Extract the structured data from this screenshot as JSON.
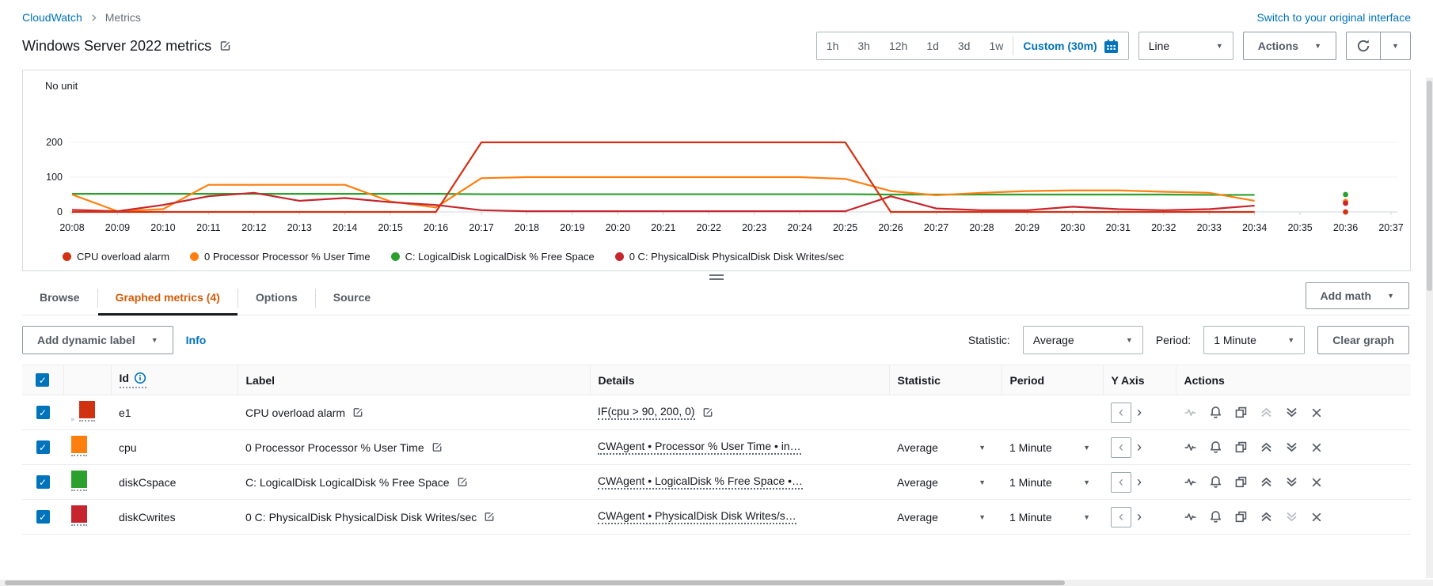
{
  "breadcrumb": {
    "home": "CloudWatch",
    "current": "Metrics"
  },
  "header": {
    "switch_link": "Switch to your original interface",
    "title": "Windows Server 2022 metrics",
    "time_ranges": [
      "1h",
      "3h",
      "12h",
      "1d",
      "3d",
      "1w"
    ],
    "custom_range": "Custom (30m)",
    "chart_type_select": "Line",
    "actions_button": "Actions"
  },
  "chart_data": {
    "type": "line",
    "unit_label": "No unit",
    "yticks": [
      0,
      100,
      200
    ],
    "ylim": [
      0,
      230
    ],
    "grid": true,
    "legend_position": "bottom",
    "x": [
      "20:08",
      "20:09",
      "20:10",
      "20:11",
      "20:12",
      "20:13",
      "20:14",
      "20:15",
      "20:16",
      "20:17",
      "20:18",
      "20:19",
      "20:20",
      "20:21",
      "20:22",
      "20:23",
      "20:24",
      "20:25",
      "20:26",
      "20:27",
      "20:28",
      "20:29",
      "20:30",
      "20:31",
      "20:32",
      "20:33",
      "20:34",
      "20:35",
      "20:36",
      "20:37"
    ],
    "series": [
      {
        "name": "C: LogicalDisk LogicalDisk % Free Space",
        "color": "#2ca02c",
        "values": [
          52,
          52,
          52,
          52,
          52,
          52,
          52,
          52,
          52,
          51,
          51,
          51,
          51,
          51,
          51,
          51,
          51,
          51,
          50,
          50,
          50,
          50,
          50,
          50,
          50,
          49,
          49,
          null,
          50,
          null
        ]
      },
      {
        "name": "0 Processor Processor % User Time",
        "color": "#ff7f0e",
        "values": [
          50,
          2,
          8,
          78,
          78,
          78,
          78,
          30,
          13,
          97,
          100,
          100,
          100,
          100,
          100,
          100,
          100,
          95,
          60,
          48,
          55,
          60,
          62,
          62,
          58,
          55,
          32,
          null,
          30,
          null
        ]
      },
      {
        "name": "0 C: PhysicalDisk PhysicalDisk Disk Writes/sec",
        "color": "#c7252d",
        "values": [
          6,
          2,
          20,
          45,
          55,
          32,
          40,
          28,
          20,
          5,
          2,
          2,
          2,
          2,
          2,
          2,
          2,
          2,
          45,
          10,
          5,
          5,
          15,
          8,
          5,
          8,
          18,
          null,
          25,
          null
        ]
      },
      {
        "name": "CPU overload alarm",
        "color": "#d13212",
        "values": [
          0,
          0,
          0,
          0,
          0,
          0,
          0,
          0,
          0,
          200,
          200,
          200,
          200,
          200,
          200,
          200,
          200,
          200,
          0,
          0,
          0,
          0,
          0,
          0,
          0,
          0,
          0,
          null,
          0,
          null
        ]
      }
    ],
    "legend_order": [
      "CPU overload alarm",
      "0 Processor Processor % User Time",
      "C: LogicalDisk LogicalDisk % Free Space",
      "0 C: PhysicalDisk PhysicalDisk Disk Writes/sec"
    ],
    "legend_colors": [
      "#d13212",
      "#ff7f0e",
      "#2ca02c",
      "#c7252d"
    ]
  },
  "tabs": {
    "items": [
      "Browse",
      "Graphed metrics (4)",
      "Options",
      "Source"
    ],
    "active_index": 1,
    "add_math_button": "Add math"
  },
  "toolbar": {
    "add_dynamic_label_button": "Add dynamic label",
    "info_link": "Info",
    "statistic_label": "Statistic:",
    "statistic_value": "Average",
    "period_label": "Period:",
    "period_value": "1 Minute",
    "clear_graph_button": "Clear graph"
  },
  "table": {
    "columns": {
      "id": "Id",
      "label": "Label",
      "details": "Details",
      "statistic": "Statistic",
      "period": "Period",
      "y_axis": "Y Axis",
      "actions": "Actions"
    },
    "rows": [
      {
        "id": "e1",
        "color": "#d13212",
        "label": "CPU overload alarm",
        "details": "IF(cpu > 90, 200, 0)",
        "details_editable": true,
        "expandable": true,
        "statistic": "",
        "period": "",
        "disabled_actions": [
          "pulse",
          "move-up"
        ]
      },
      {
        "id": "cpu",
        "color": "#ff7f0e",
        "label": "0 Processor Processor % User Time",
        "details": "CWAgent • Processor % User Time • in…",
        "details_editable": false,
        "expandable": false,
        "statistic": "Average",
        "period": "1 Minute",
        "disabled_actions": []
      },
      {
        "id": "diskCspace",
        "color": "#2ca02c",
        "label": "C: LogicalDisk LogicalDisk % Free Space",
        "details": "CWAgent • LogicalDisk % Free Space •…",
        "details_editable": false,
        "expandable": false,
        "statistic": "Average",
        "period": "1 Minute",
        "disabled_actions": []
      },
      {
        "id": "diskCwrites",
        "color": "#c7252d",
        "label": "0 C: PhysicalDisk PhysicalDisk Disk Writes/sec",
        "details": "CWAgent • PhysicalDisk Disk Writes/s…",
        "details_editable": false,
        "expandable": false,
        "statistic": "Average",
        "period": "1 Minute",
        "disabled_actions": [
          "move-down"
        ]
      }
    ]
  }
}
